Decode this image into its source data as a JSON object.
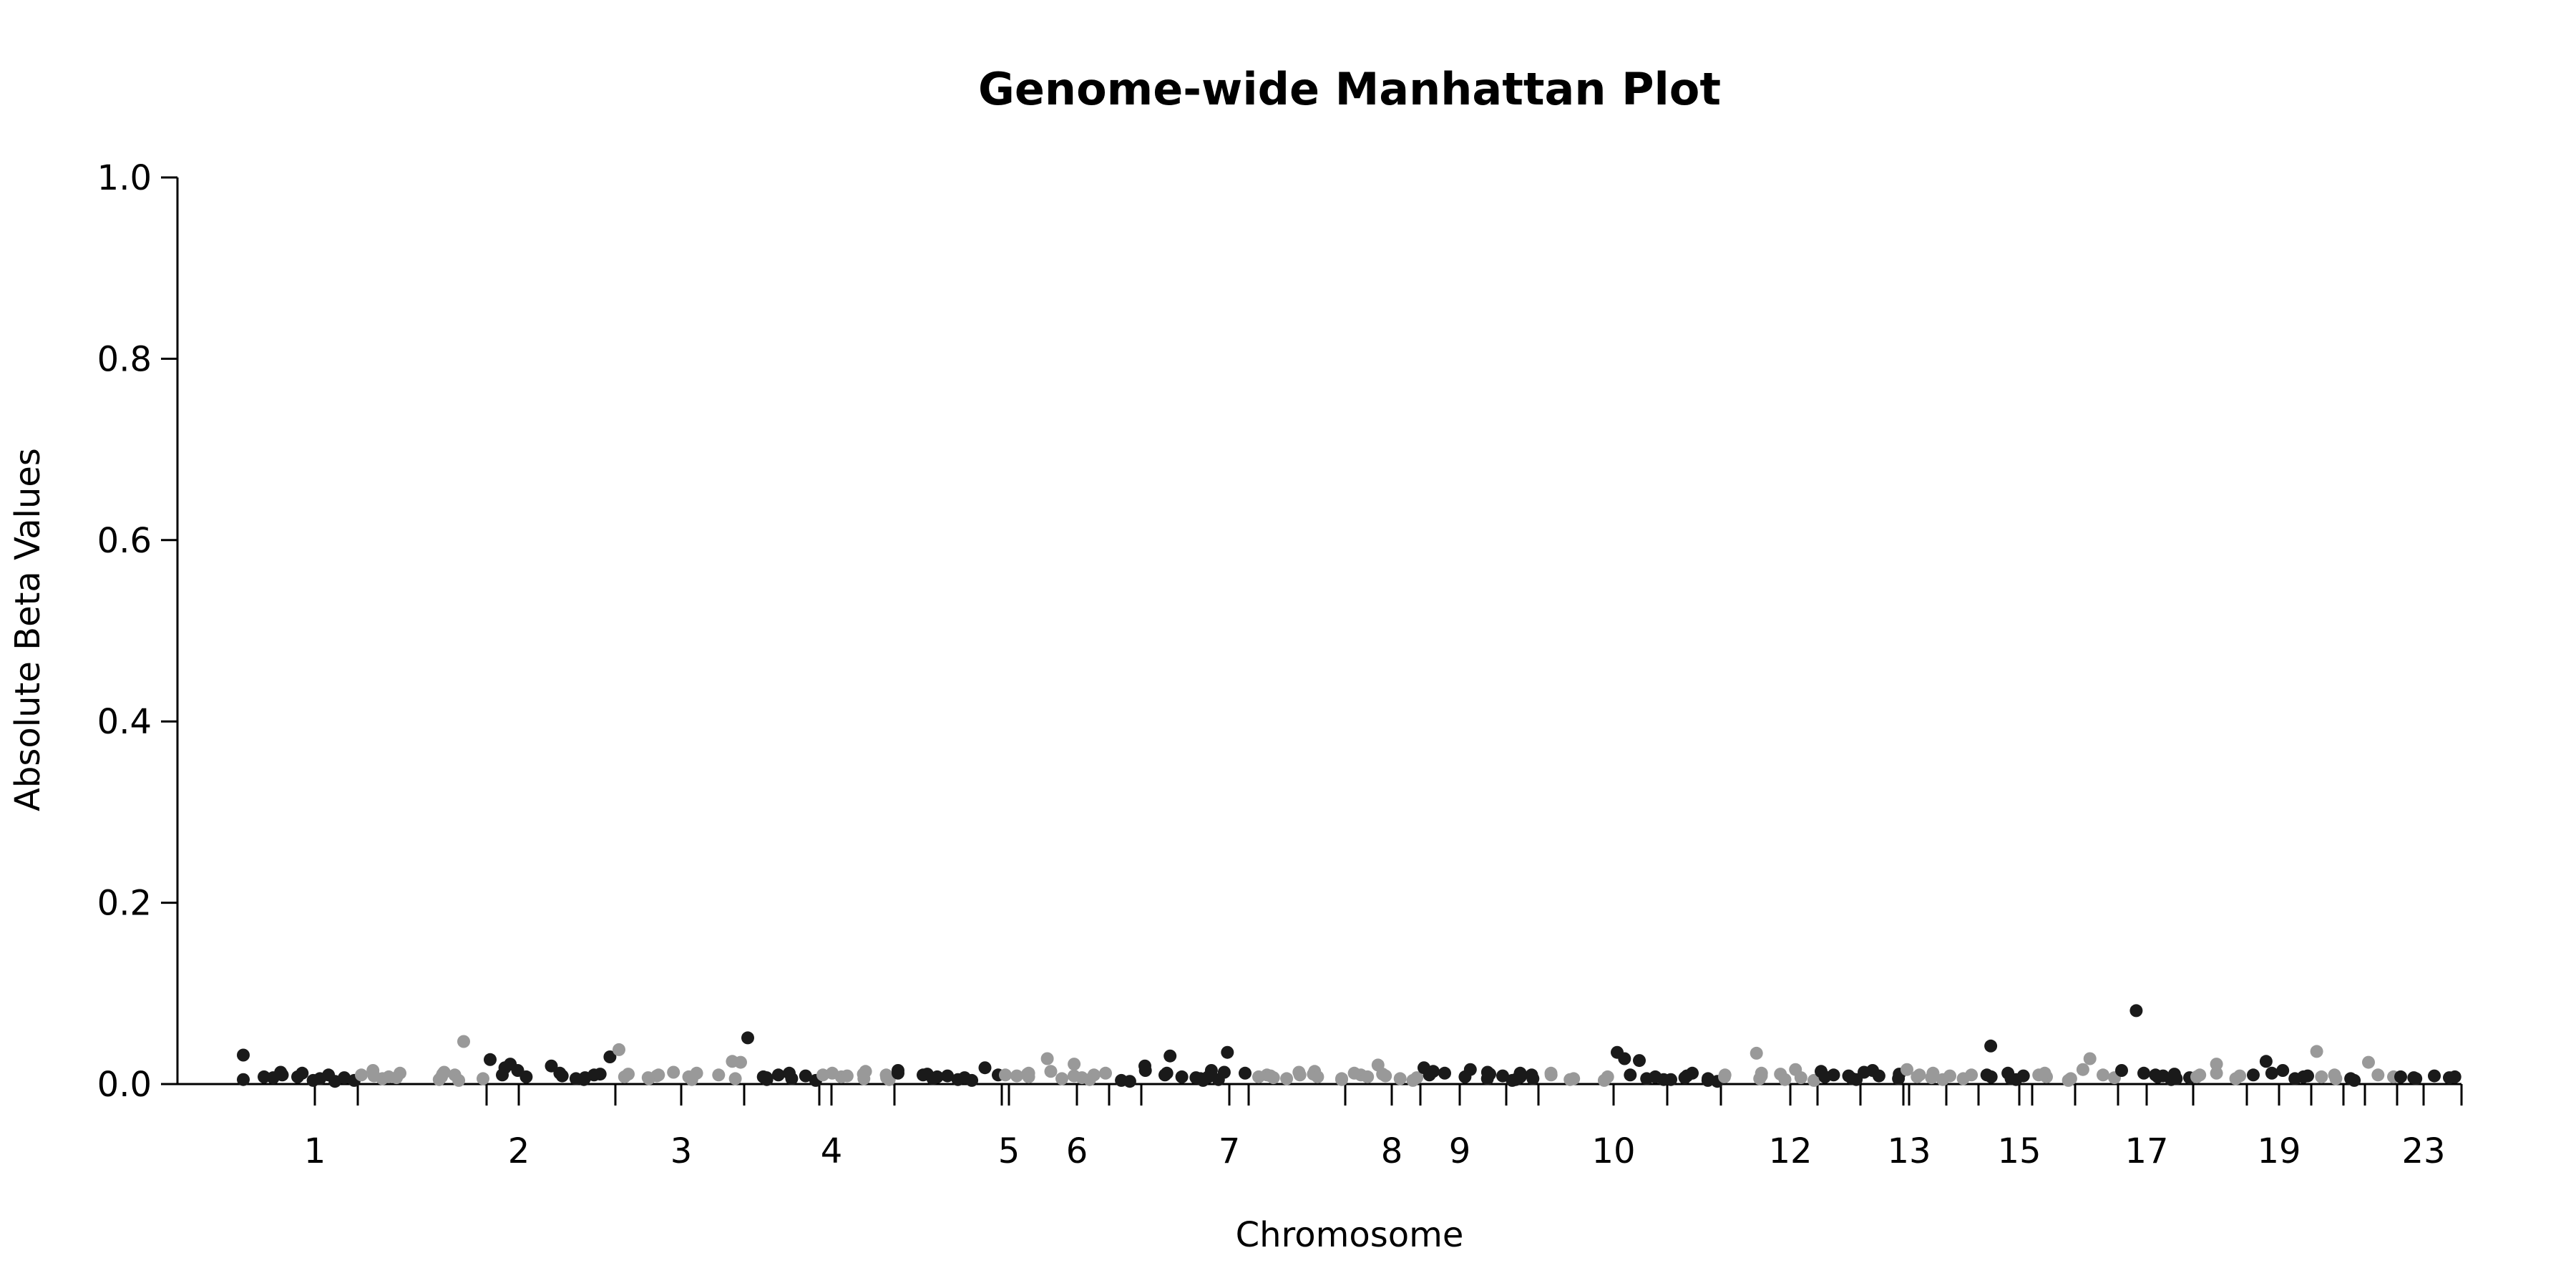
{
  "chart_data": {
    "type": "scatter",
    "title": "Genome-wide Manhattan Plot",
    "xlabel": "Chromosome",
    "ylabel": "Absolute Beta Values",
    "ylim": [
      0,
      1.0
    ],
    "y_ticks": [
      "0.0",
      "0.2",
      "0.4",
      "0.6",
      "0.8",
      "1.0"
    ],
    "x_tick_labels": [
      "1",
      "2",
      "3",
      "4",
      "5",
      "6",
      "7",
      "8",
      "9",
      "10",
      "12",
      "13",
      "15",
      "17",
      "19",
      "23"
    ],
    "grid": false,
    "colors": {
      "odd": "#1a1a1a",
      "even": "#999999"
    },
    "chromosomes": [
      {
        "chr": "1",
        "label": "1",
        "color": "odd",
        "points": [
          0.032,
          0.005,
          0.007,
          0.008,
          0.01,
          0.013,
          0.008,
          0.012,
          0.006,
          0.004,
          0.01,
          0.007,
          0.003,
          0.004
        ]
      },
      {
        "chr": "2",
        "label": "2",
        "color": "even",
        "points": [
          0.01,
          0.006,
          0.008,
          0.015,
          0.012,
          0.009,
          0.011,
          0.007,
          0.013,
          0.005,
          0.01,
          0.008,
          0.047,
          0.006,
          0.004
        ]
      },
      {
        "chr": "3",
        "label": "3",
        "color": "odd",
        "points": [
          0.027,
          0.022,
          0.018,
          0.015,
          0.02,
          0.01,
          0.012,
          0.008,
          0.006,
          0.009,
          0.011,
          0.007,
          0.03,
          0.01,
          0.005
        ]
      },
      {
        "chr": "4",
        "label": "4",
        "color": "even",
        "points": [
          0.038,
          0.01,
          0.008,
          0.006,
          0.011,
          0.009,
          0.012,
          0.007,
          0.005,
          0.013,
          0.025,
          0.008,
          0.006,
          0.01,
          0.024
        ]
      },
      {
        "chr": "5",
        "label": "",
        "color": "odd",
        "points": [
          0.051,
          0.005,
          0.008,
          0.01,
          0.007,
          0.006,
          0.009,
          0.012,
          0.004
        ]
      },
      {
        "chr": "6",
        "label": "5",
        "color": "even",
        "points": [
          0.01,
          0.008,
          0.012,
          0.006,
          0.009,
          0.014,
          0.011,
          0.007,
          0.005,
          0.01
        ]
      },
      {
        "chr": "7",
        "label": "",
        "color": "odd",
        "points": [
          0.015,
          0.01,
          0.012,
          0.008,
          0.006,
          0.009,
          0.011,
          0.018,
          0.005,
          0.007,
          0.01,
          0.004
        ]
      },
      {
        "chr": "8",
        "label": "6",
        "color": "even",
        "points": [
          0.01,
          0.012,
          0.009,
          0.008,
          0.011,
          0.006,
          0.028,
          0.022,
          0.014,
          0.01,
          0.007,
          0.009,
          0.012,
          0.005
        ]
      },
      {
        "chr": "9",
        "label": "",
        "color": "odd",
        "points": [
          0.004,
          0.003
        ]
      },
      {
        "chr": "10",
        "label": "7",
        "color": "odd",
        "points": [
          0.015,
          0.02,
          0.012,
          0.008,
          0.031,
          0.006,
          0.01,
          0.015,
          0.007,
          0.005,
          0.004,
          0.035,
          0.008,
          0.013,
          0.012
        ]
      },
      {
        "chr": "11",
        "label": "",
        "color": "even",
        "points": [
          0.01,
          0.008,
          0.006,
          0.009,
          0.007,
          0.011,
          0.013,
          0.014,
          0.01,
          0.006,
          0.008,
          0.005
        ]
      },
      {
        "chr": "12",
        "label": "8",
        "color": "even",
        "points": [
          0.01,
          0.012,
          0.021,
          0.008,
          0.006,
          0.009,
          0.011,
          0.007,
          0.004
        ]
      },
      {
        "chr": "13",
        "label": "9",
        "color": "odd",
        "points": [
          0.014,
          0.018,
          0.012,
          0.01,
          0.016,
          0.008,
          0.013,
          0.006,
          0.011,
          0.009
        ]
      },
      {
        "chr": "14",
        "label": "",
        "color": "odd",
        "points": [
          0.005,
          0.004,
          0.012,
          0.008,
          0.006,
          0.01
        ]
      },
      {
        "chr": "15",
        "label": "10",
        "color": "even",
        "points": [
          0.01,
          0.012,
          0.006,
          0.005,
          0.008,
          0.004
        ]
      },
      {
        "chr": "16",
        "label": "",
        "color": "odd",
        "points": [
          0.035,
          0.028,
          0.026,
          0.01,
          0.008,
          0.006,
          0.005
        ]
      },
      {
        "chr": "17",
        "label": "",
        "color": "odd",
        "points": [
          0.005,
          0.007,
          0.012,
          0.009,
          0.006,
          0.004,
          0.003
        ]
      },
      {
        "chr": "18",
        "label": "12",
        "color": "even",
        "points": [
          0.01,
          0.034,
          0.008,
          0.006,
          0.009,
          0.012,
          0.016,
          0.011,
          0.007,
          0.005,
          0.004
        ]
      },
      {
        "chr": "19",
        "label": "",
        "color": "odd",
        "points": [
          0.014,
          0.01,
          0.008,
          0.006,
          0.009,
          0.005
        ]
      },
      {
        "chr": "20",
        "label": "13",
        "color": "odd",
        "points": [
          0.013,
          0.009,
          0.015,
          0.011,
          0.006
        ]
      },
      {
        "chr": "21",
        "label": "",
        "color": "even",
        "points": [
          0.016,
          0.01,
          0.008,
          0.012,
          0.007,
          0.005
        ]
      },
      {
        "chr": "22",
        "label": "",
        "color": "even",
        "points": [
          0.009,
          0.006,
          0.01
        ]
      },
      {
        "chr": "23",
        "label": "15",
        "color": "odd",
        "points": [
          0.042,
          0.008,
          0.01,
          0.006,
          0.012,
          0.009,
          0.005
        ]
      },
      {
        "chr": "24",
        "label": "",
        "color": "even",
        "points": [
          0.008,
          0.01,
          0.012,
          0.006,
          0.004
        ]
      },
      {
        "chr": "25",
        "label": "",
        "color": "even",
        "points": [
          0.016,
          0.028,
          0.01,
          0.007
        ]
      },
      {
        "chr": "26",
        "label": "17",
        "color": "odd",
        "points": [
          0.081,
          0.015,
          0.01,
          0.012,
          0.008,
          0.006,
          0.009,
          0.011,
          0.005,
          0.007
        ]
      },
      {
        "chr": "27",
        "label": "",
        "color": "even",
        "points": [
          0.01,
          0.008,
          0.012,
          0.022,
          0.006,
          0.009
        ]
      },
      {
        "chr": "28",
        "label": "19",
        "color": "odd",
        "points": [
          0.025,
          0.01,
          0.015,
          0.012,
          0.008,
          0.006,
          0.009
        ]
      },
      {
        "chr": "29",
        "label": "",
        "color": "even",
        "points": [
          0.036,
          0.008,
          0.01,
          0.006
        ]
      },
      {
        "chr": "30",
        "label": "",
        "color": "odd",
        "points": [
          0.006,
          0.004
        ]
      },
      {
        "chr": "31",
        "label": "",
        "color": "even",
        "points": [
          0.024,
          0.01,
          0.008
        ]
      },
      {
        "chr": "32",
        "label": "23",
        "color": "odd",
        "points": [
          0.008,
          0.007,
          0.006,
          0.009,
          0.008,
          0.007
        ]
      }
    ]
  }
}
